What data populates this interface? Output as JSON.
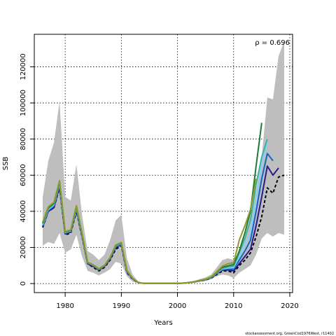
{
  "chart_data": {
    "type": "line",
    "xlabel": "Years",
    "ylabel": "SSB",
    "xlim": [
      1974.5,
      2020.5
    ],
    "ylim": [
      -5000,
      138000
    ],
    "x_ticks": [
      1980,
      1990,
      2000,
      2010,
      2020
    ],
    "y_ticks": [
      0,
      20000,
      40000,
      60000,
      80000,
      100000,
      120000
    ],
    "grid": true,
    "annotation": "ρ = 0.696",
    "footer": "stockassessment.org, GreenCod1976West, r11402",
    "band": {
      "color": "#bebebe",
      "years": [
        1976,
        1977,
        1978,
        1979,
        1980,
        1981,
        1982,
        1983,
        1984,
        1985,
        1986,
        1987,
        1988,
        1989,
        1990,
        1991,
        1992,
        1993,
        1994,
        1995,
        1996,
        1997,
        1998,
        1999,
        2000,
        2001,
        2002,
        2003,
        2004,
        2005,
        2006,
        2007,
        2008,
        2009,
        2010,
        2011,
        2012,
        2013,
        2014,
        2015,
        2016,
        2017,
        2018,
        2019
      ],
      "upper": [
        48000,
        68000,
        78000,
        101000,
        48000,
        46000,
        66000,
        38000,
        18000,
        16000,
        13000,
        16000,
        24000,
        35000,
        38000,
        14000,
        5000,
        1200,
        400,
        300,
        300,
        300,
        300,
        300,
        300,
        400,
        800,
        1500,
        2500,
        3500,
        5000,
        9000,
        13000,
        14000,
        13000,
        17000,
        26000,
        38000,
        52000,
        70000,
        103000,
        102000,
        126000,
        134000
      ],
      "lower": [
        21000,
        23000,
        22000,
        28000,
        17000,
        19000,
        27000,
        15000,
        7000,
        6000,
        4500,
        6000,
        8000,
        12000,
        11000,
        4000,
        1000,
        200,
        50,
        30,
        30,
        30,
        30,
        30,
        30,
        50,
        150,
        500,
        1000,
        1500,
        2500,
        4000,
        5000,
        4500,
        3000,
        6000,
        8000,
        10000,
        16000,
        25000,
        28000,
        26000,
        28000,
        27000
      ]
    },
    "series": [
      {
        "color": "#000000",
        "dashed": true,
        "years": [
          1976,
          1977,
          1978,
          1979,
          1980,
          1981,
          1982,
          1983,
          1984,
          1985,
          1986,
          1987,
          1988,
          1989,
          1990,
          1991,
          1992,
          1993,
          1994,
          1995,
          1996,
          1997,
          1998,
          1999,
          2000,
          2001,
          2002,
          2003,
          2004,
          2005,
          2006,
          2007,
          2008,
          2009,
          2010,
          2011,
          2012,
          2013,
          2014,
          2015,
          2016,
          2017,
          2018,
          2019
        ],
        "values": [
          31000,
          40000,
          42000,
          53000,
          27000,
          28000,
          40000,
          26000,
          11000,
          9000,
          7000,
          9000,
          13000,
          19000,
          21000,
          6000,
          2500,
          500,
          100,
          80,
          80,
          80,
          80,
          80,
          100,
          200,
          500,
          900,
          1500,
          2000,
          3000,
          5000,
          7000,
          7000,
          6000,
          10000,
          13000,
          17000,
          26000,
          37000,
          53000,
          50000,
          59000,
          60000
        ]
      },
      {
        "color": "#2a1a8a",
        "dashed": false,
        "years": [
          1976,
          1977,
          1978,
          1979,
          1980,
          1981,
          1982,
          1983,
          1984,
          1985,
          1986,
          1987,
          1988,
          1989,
          1990,
          1991,
          1992,
          1993,
          1994,
          1995,
          1996,
          1997,
          1998,
          1999,
          2000,
          2001,
          2002,
          2003,
          2004,
          2005,
          2006,
          2007,
          2008,
          2009,
          2010,
          2011,
          2012,
          2013,
          2014,
          2015,
          2016,
          2017,
          2018
        ],
        "values": [
          31500,
          40000,
          42000,
          54000,
          27500,
          28500,
          41000,
          26500,
          11000,
          9500,
          7500,
          9500,
          13500,
          20000,
          21500,
          6500,
          2700,
          550,
          110,
          90,
          90,
          90,
          90,
          90,
          110,
          220,
          520,
          950,
          1600,
          2100,
          3200,
          5500,
          7500,
          7500,
          7000,
          11000,
          15000,
          19000,
          32000,
          48000,
          65000,
          60000,
          64000
        ]
      },
      {
        "color": "#1565c0",
        "dashed": false,
        "years": [
          1976,
          1977,
          1978,
          1979,
          1980,
          1981,
          1982,
          1983,
          1984,
          1985,
          1986,
          1987,
          1988,
          1989,
          1990,
          1991,
          1992,
          1993,
          1994,
          1995,
          1996,
          1997,
          1998,
          1999,
          2000,
          2001,
          2002,
          2003,
          2004,
          2005,
          2006,
          2007,
          2008,
          2009,
          2010,
          2011,
          2012,
          2013,
          2014,
          2015,
          2016,
          2017
        ],
        "values": [
          32000,
          40500,
          43000,
          55000,
          28000,
          29000,
          41500,
          27000,
          11500,
          10000,
          7800,
          9800,
          14000,
          20500,
          22000,
          6800,
          2800,
          560,
          110,
          90,
          90,
          90,
          90,
          90,
          110,
          220,
          530,
          970,
          1650,
          2200,
          3300,
          5700,
          7800,
          8000,
          8000,
          13000,
          18000,
          24000,
          40000,
          58000,
          72000,
          68000
        ]
      },
      {
        "color": "#87cefa",
        "dashed": false,
        "years": [
          1976,
          1977,
          1978,
          1979,
          1980,
          1981,
          1982,
          1983,
          1984,
          1985,
          1986,
          1987,
          1988,
          1989,
          1990,
          1991,
          1992,
          1993,
          1994,
          1995,
          1996,
          1997,
          1998,
          1999,
          2000,
          2001,
          2002,
          2003,
          2004,
          2005,
          2006,
          2007,
          2008,
          2009,
          2010,
          2011,
          2012,
          2013,
          2014,
          2015,
          2016
        ],
        "values": [
          32500,
          41000,
          43500,
          55500,
          28200,
          29200,
          42000,
          27200,
          11600,
          10100,
          7900,
          9900,
          14200,
          20800,
          22200,
          6900,
          2850,
          570,
          110,
          90,
          90,
          90,
          90,
          90,
          110,
          220,
          540,
          980,
          1680,
          2250,
          3400,
          5900,
          8200,
          8600,
          8800,
          15000,
          21000,
          28000,
          46000,
          66000,
          78000
        ]
      },
      {
        "color": "#3cb3a0",
        "dashed": false,
        "years": [
          1976,
          1977,
          1978,
          1979,
          1980,
          1981,
          1982,
          1983,
          1984,
          1985,
          1986,
          1987,
          1988,
          1989,
          1990,
          1991,
          1992,
          1993,
          1994,
          1995,
          1996,
          1997,
          1998,
          1999,
          2000,
          2001,
          2002,
          2003,
          2004,
          2005,
          2006,
          2007,
          2008,
          2009,
          2010,
          2011,
          2012,
          2013,
          2014,
          2015,
          2016
        ],
        "values": [
          33000,
          41500,
          44000,
          56000,
          28400,
          29400,
          42500,
          27400,
          11700,
          10200,
          8000,
          10000,
          14300,
          21000,
          22400,
          7000,
          2900,
          580,
          110,
          90,
          90,
          90,
          90,
          90,
          110,
          220,
          550,
          990,
          1700,
          2300,
          3500,
          6100,
          8600,
          9200,
          9600,
          17000,
          25000,
          35000,
          55000,
          70000,
          80000
        ]
      },
      {
        "color": "#1b7a3a",
        "dashed": false,
        "years": [
          1976,
          1977,
          1978,
          1979,
          1980,
          1981,
          1982,
          1983,
          1984,
          1985,
          1986,
          1987,
          1988,
          1989,
          1990,
          1991,
          1992,
          1993,
          1994,
          1995,
          1996,
          1997,
          1998,
          1999,
          2000,
          2001,
          2002,
          2003,
          2004,
          2005,
          2006,
          2007,
          2008,
          2009,
          2010,
          2011,
          2012,
          2013,
          2014,
          2015
        ],
        "values": [
          33500,
          42000,
          44500,
          56500,
          28600,
          29600,
          43000,
          27600,
          11800,
          10300,
          8100,
          10100,
          14400,
          21200,
          22600,
          7100,
          2950,
          590,
          110,
          90,
          90,
          90,
          90,
          90,
          110,
          220,
          560,
          1000,
          1720,
          2350,
          3600,
          6300,
          9000,
          9800,
          10500,
          18000,
          28000,
          40000,
          65000,
          89000
        ]
      },
      {
        "color": "#8c9a2a",
        "dashed": false,
        "years": [
          1976,
          1977,
          1978,
          1979,
          1980,
          1981,
          1982,
          1983,
          1984,
          1985,
          1986,
          1987,
          1988,
          1989,
          1990,
          1991,
          1992,
          1993,
          1994,
          1995,
          1996,
          1997,
          1998,
          1999,
          2000,
          2001,
          2002,
          2003,
          2004,
          2005,
          2006,
          2007,
          2008,
          2009,
          2010,
          2011,
          2012,
          2013,
          2014
        ],
        "values": [
          34000,
          42500,
          45000,
          57000,
          28800,
          29800,
          43200,
          27800,
          11900,
          10400,
          8200,
          10200,
          14500,
          21400,
          22800,
          7200,
          3000,
          600,
          110,
          90,
          90,
          90,
          90,
          90,
          110,
          220,
          570,
          1020,
          1750,
          2400,
          3700,
          6600,
          9600,
          11000,
          11500,
          24000,
          32000,
          41000,
          58000
        ]
      }
    ]
  }
}
